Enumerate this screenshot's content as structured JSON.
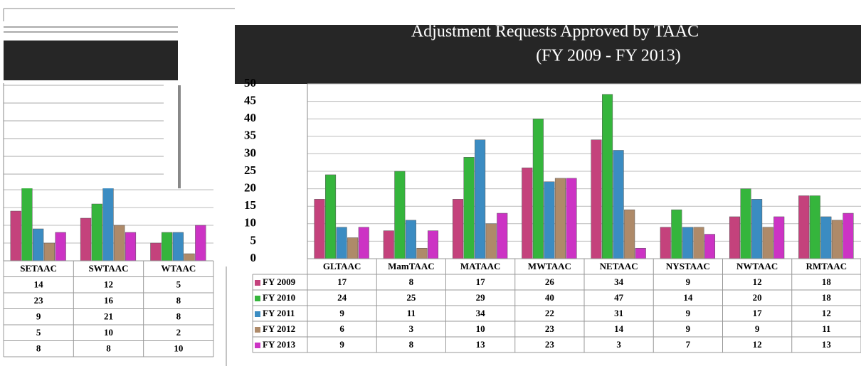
{
  "chart_data": [
    {
      "type": "bar",
      "title": "Adjustment Requests Approved by TAAC",
      "subtitle": "(FY 2009 - FY 2013)",
      "categories": [
        "GLTAAC",
        "MamTAAC",
        "MATAAC",
        "MWTAAC",
        "NETAAC",
        "NYSTAAC",
        "NWTAAC",
        "RMTAAC"
      ],
      "series": [
        {
          "name": "FY 2009",
          "color": "#c4427c",
          "values": [
            17,
            8,
            17,
            26,
            34,
            9,
            12,
            18
          ]
        },
        {
          "name": "FY 2010",
          "color": "#35b53c",
          "values": [
            24,
            25,
            29,
            40,
            47,
            14,
            20,
            18
          ]
        },
        {
          "name": "FY 2011",
          "color": "#3b8cc2",
          "values": [
            9,
            11,
            34,
            22,
            31,
            9,
            17,
            12
          ]
        },
        {
          "name": "FY 2012",
          "color": "#ae8a69",
          "values": [
            6,
            3,
            10,
            23,
            14,
            9,
            9,
            11
          ]
        },
        {
          "name": "FY 2013",
          "color": "#cc33c4",
          "values": [
            9,
            8,
            13,
            23,
            3,
            7,
            12,
            13
          ]
        }
      ],
      "ylim": [
        0,
        50
      ],
      "yticks": [
        0,
        5,
        10,
        15,
        20,
        25,
        30,
        35,
        40,
        45,
        50
      ],
      "grid": true
    },
    {
      "type": "bar",
      "categories": [
        "SETAAC",
        "SWTAAC",
        "WTAAC"
      ],
      "series": [
        {
          "color": "#c4427c",
          "values": [
            14,
            12,
            5
          ]
        },
        {
          "color": "#35b53c",
          "values": [
            23,
            16,
            8
          ]
        },
        {
          "color": "#3b8cc2",
          "values": [
            9,
            21,
            8
          ]
        },
        {
          "color": "#ae8a69",
          "values": [
            5,
            10,
            2
          ]
        },
        {
          "color": "#cc33c4",
          "values": [
            8,
            8,
            10
          ]
        }
      ],
      "ylim": [
        0,
        50
      ]
    }
  ]
}
